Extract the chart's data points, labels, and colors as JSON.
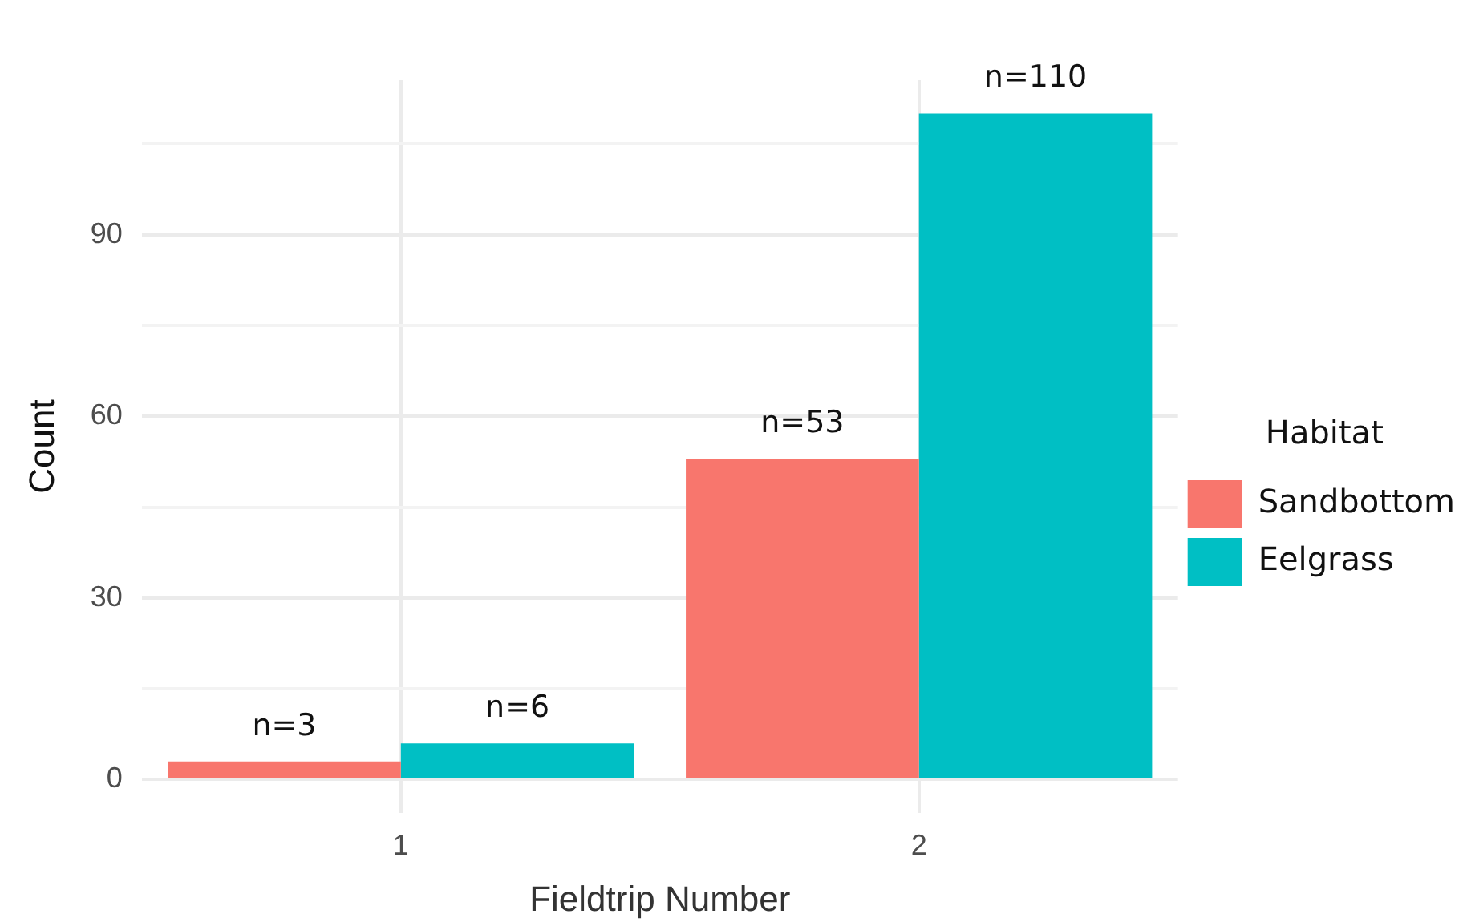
{
  "chart_data": {
    "type": "bar",
    "xlabel": "Fieldtrip Number",
    "ylabel": "Count",
    "legend_title": "Habitat",
    "categories": [
      "1",
      "2"
    ],
    "series": [
      {
        "name": "Sandbottom",
        "color": "#f8766d",
        "values": [
          3,
          53
        ],
        "value_labels": [
          "n=3",
          "n=53"
        ]
      },
      {
        "name": "Eelgrass",
        "color": "#00bfc4",
        "values": [
          6,
          110
        ],
        "value_labels": [
          "n=6",
          "n=110"
        ]
      }
    ],
    "ylim": [
      -5.5,
      115.5
    ],
    "yticks": [
      0,
      {
        "value": 15,
        "label": null
      },
      30,
      {
        "value": 45,
        "label": null
      },
      60,
      {
        "value": 75,
        "label": null
      },
      90,
      {
        "value": 105,
        "label": null
      }
    ],
    "grid": true,
    "legend": "right"
  }
}
